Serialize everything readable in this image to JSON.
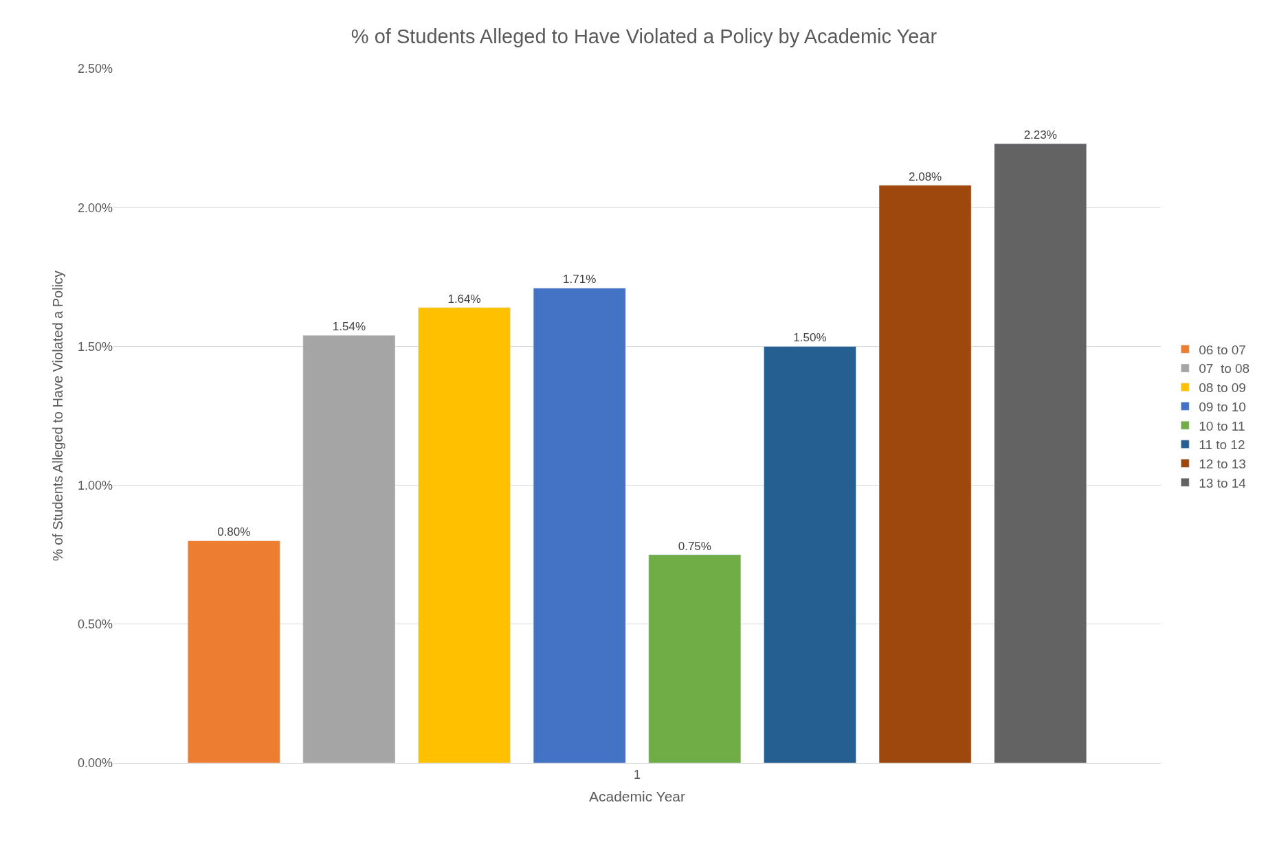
{
  "chart_data": {
    "type": "bar",
    "title": "% of Students Alleged to Have Violated a Policy by Academic Year",
    "xlabel": "Academic Year",
    "ylabel": "% of Students Alleged to Have Violated a Policy",
    "categories": [
      "1"
    ],
    "series": [
      {
        "name": "06 to 07",
        "color": "#ed7d31",
        "values": [
          0.8
        ],
        "value_labels": [
          "0.80%"
        ]
      },
      {
        "name": "07  to 08",
        "color": "#a5a5a5",
        "values": [
          1.54
        ],
        "value_labels": [
          "1.54%"
        ]
      },
      {
        "name": "08 to 09",
        "color": "#ffc000",
        "values": [
          1.64
        ],
        "value_labels": [
          "1.64%"
        ]
      },
      {
        "name": "09 to 10",
        "color": "#4472c4",
        "values": [
          1.71
        ],
        "value_labels": [
          "1.71%"
        ]
      },
      {
        "name": "10 to 11",
        "color": "#70ad47",
        "values": [
          0.75
        ],
        "value_labels": [
          "0.75%"
        ]
      },
      {
        "name": "11 to 12",
        "color": "#255e91",
        "values": [
          1.5
        ],
        "value_labels": [
          "1.50%"
        ]
      },
      {
        "name": "12 to 13",
        "color": "#9e480e",
        "values": [
          2.08
        ],
        "value_labels": [
          "2.08%"
        ]
      },
      {
        "name": "13 to 14",
        "color": "#636363",
        "values": [
          2.23
        ],
        "value_labels": [
          "2.23%"
        ]
      }
    ],
    "ylim": [
      0,
      2.5
    ],
    "yticks": [
      {
        "value": 0,
        "label": "0.00%"
      },
      {
        "value": 0.5,
        "label": "0.50%"
      },
      {
        "value": 1.0,
        "label": "1.00%"
      },
      {
        "value": 1.5,
        "label": "1.50%"
      },
      {
        "value": 2.0,
        "label": "2.00%"
      },
      {
        "value": 2.5,
        "label": "2.50%"
      }
    ],
    "grid": "y",
    "legend": "right"
  }
}
